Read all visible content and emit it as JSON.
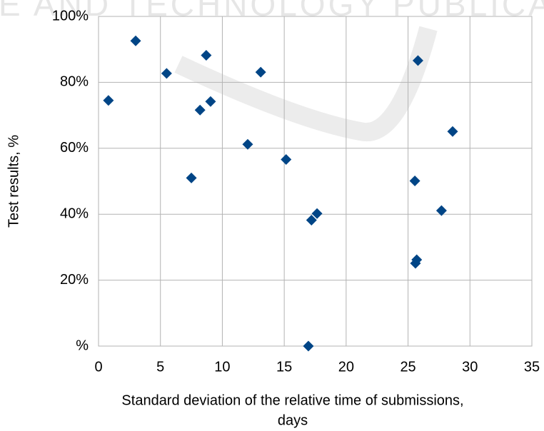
{
  "chart_data": {
    "type": "scatter",
    "watermark": "E AND TECHNOLOGY PUBLICA",
    "xlabel": [
      "Standard deviation of the relative time of submissions,",
      "days"
    ],
    "ylabel": "Test results, %",
    "xlim": [
      0,
      35
    ],
    "xticks": [
      0,
      5,
      10,
      15,
      20,
      25,
      30,
      35
    ],
    "ylim": [
      0,
      100
    ],
    "yticks": [
      {
        "value": 0,
        "label": "%"
      },
      {
        "value": 20,
        "label": "20%"
      },
      {
        "value": 40,
        "label": "40%"
      },
      {
        "value": 60,
        "label": "60%"
      },
      {
        "value": 80,
        "label": "80%"
      },
      {
        "value": 100,
        "label": "100%"
      }
    ],
    "grid": true,
    "color": "#004586",
    "x": [
      0.8,
      3.0,
      5.5,
      7.5,
      8.2,
      8.7,
      9.05,
      12.05,
      13.1,
      15.15,
      16.95,
      17.2,
      17.65,
      25.55,
      25.6,
      25.7,
      25.8,
      27.7,
      28.6
    ],
    "values": [
      74.5,
      92.6,
      82.7,
      51,
      71.6,
      88.2,
      74.2,
      61.2,
      83.1,
      56.6,
      0,
      38.2,
      40.2,
      50.1,
      25.1,
      26.2,
      86.6,
      41.1,
      65.1
    ]
  }
}
